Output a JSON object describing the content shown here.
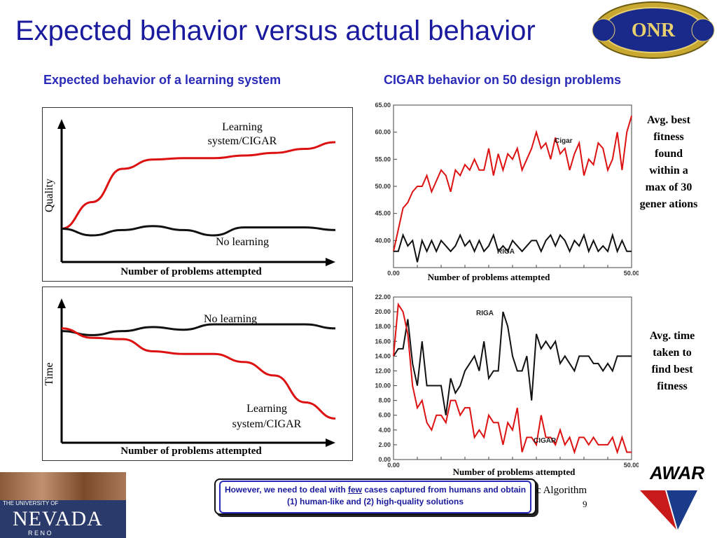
{
  "slide": {
    "title": "Expected behavior versus actual behavior",
    "left_heading": "Expected behavior of a learning system",
    "right_heading": "CIGAR behavior on 50 design problems",
    "page_number": "9",
    "partial_footer": "c Algorithm",
    "callout": {
      "text_before": "However, we need to deal with ",
      "emphasis": "few",
      "text_after": " cases captured from humans and obtain (1) human-like and (2) high-quality solutions"
    },
    "logos": {
      "onr_seal": "DEPARTMENT OF THE NAVY · ONR · Science & Technology",
      "nevada": {
        "line1": "THE UNIVERSITY OF",
        "line2": "NEVADA",
        "line3": "R E N O"
      },
      "spawar": "AWAR"
    },
    "notes": {
      "fitness": "Avg. best fitness found within a max of 30 gener ations",
      "time": "Avg. time taken to find best fitness"
    },
    "accent_colors": {
      "title": "#1a1a9e",
      "learning": "#dd1111",
      "no_learning": "#111111"
    }
  },
  "chart_data": [
    {
      "type": "line",
      "ylabel": "Quality",
      "xlabel": "Number of problems attempted",
      "annotations": [
        "Learning system/CIGAR",
        "No learning"
      ],
      "series": [
        {
          "values": [
            0.25,
            0.45,
            0.7,
            0.77,
            0.78,
            0.78,
            0.8,
            0.82,
            0.85,
            0.9
          ]
        },
        {
          "values": [
            0.25,
            0.2,
            0.24,
            0.27,
            0.24,
            0.2,
            0.26,
            0.26,
            0.26,
            0.24
          ]
        }
      ]
    },
    {
      "type": "line",
      "ylabel": "Time",
      "xlabel": "Number of problems attempted",
      "annotations": [
        "No learning",
        "Learning system/CIGAR"
      ],
      "series": [
        {
          "values": [
            0.83,
            0.8,
            0.83,
            0.86,
            0.84,
            0.88,
            0.88,
            0.88,
            0.88,
            0.85
          ]
        },
        {
          "values": [
            0.85,
            0.78,
            0.77,
            0.68,
            0.66,
            0.66,
            0.6,
            0.5,
            0.3,
            0.18
          ]
        }
      ]
    },
    {
      "type": "line",
      "xlabel": "Number of problems attempted",
      "xlim": [
        0,
        50
      ],
      "ylim": [
        35,
        65
      ],
      "x_ticks": [
        "0.00",
        "50.00"
      ],
      "y_ticks": [
        "40.00",
        "45.00",
        "50.00",
        "55.00",
        "60.00",
        "65.00"
      ],
      "series": [
        {
          "name": "Cigar",
          "values": [
            38,
            42,
            46,
            47,
            49,
            50,
            50,
            52,
            49,
            51,
            53,
            52,
            49,
            53,
            52,
            54,
            53,
            55,
            53,
            53,
            57,
            52,
            56,
            53,
            56,
            55,
            57,
            53,
            55,
            57,
            60,
            57,
            58,
            55,
            59,
            56,
            57,
            53,
            56,
            58,
            52,
            55,
            54,
            58,
            57,
            53,
            55,
            60,
            53,
            60,
            63
          ]
        },
        {
          "name": "RIGA",
          "values": [
            38,
            38,
            41,
            39,
            40,
            36,
            40,
            38,
            40,
            38,
            40,
            39,
            38,
            39,
            41,
            39,
            40,
            38,
            40,
            38,
            39,
            41,
            38,
            39,
            38,
            40,
            39,
            38,
            39,
            40,
            40,
            38,
            40,
            41,
            39,
            41,
            40,
            38,
            40,
            39,
            41,
            38,
            40,
            38,
            39,
            38,
            41,
            38,
            40,
            38,
            38
          ]
        }
      ]
    },
    {
      "type": "line",
      "xlabel": "Number of problems attempted",
      "xlim": [
        0,
        50
      ],
      "ylim": [
        0,
        22
      ],
      "x_ticks": [
        "0.00",
        "50.00"
      ],
      "y_ticks": [
        "0.00",
        "2.00",
        "4.00",
        "6.00",
        "8.00",
        "10.00",
        "12.00",
        "14.00",
        "16.00",
        "18.00",
        "20.00",
        "22.00"
      ],
      "series": [
        {
          "name": "RIGA",
          "values": [
            14,
            15,
            15,
            19,
            13,
            10,
            16,
            10,
            10,
            10,
            10,
            6,
            11,
            9,
            10,
            12,
            13,
            14,
            12,
            16,
            11,
            12,
            12,
            20,
            18,
            14,
            12,
            12,
            14,
            8,
            17,
            15,
            16,
            15,
            16,
            13,
            14,
            13,
            12,
            14,
            14,
            14,
            13,
            13,
            12,
            13,
            12,
            14,
            14,
            14,
            14
          ]
        },
        {
          "name": "CIGAR",
          "values": [
            14,
            21,
            20,
            17,
            10,
            7,
            8,
            5,
            4,
            6,
            6,
            5,
            8,
            8,
            6,
            7,
            7,
            3,
            4,
            3,
            6,
            5,
            5,
            2,
            5,
            4,
            7,
            1,
            3,
            3,
            2,
            6,
            3,
            3,
            2,
            4,
            2,
            3,
            1,
            3,
            3,
            2,
            3,
            2,
            2,
            2,
            3,
            1,
            3,
            1,
            1
          ]
        }
      ]
    }
  ]
}
